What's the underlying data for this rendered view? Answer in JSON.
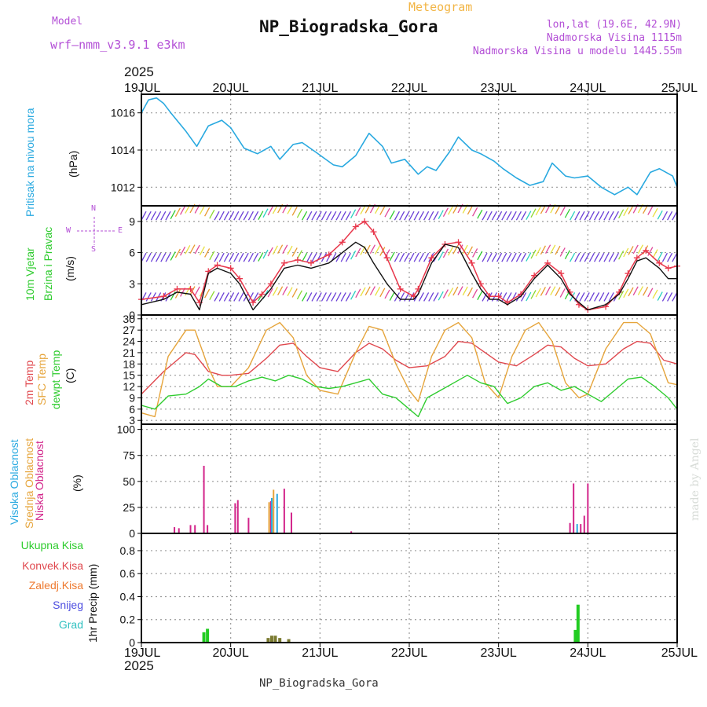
{
  "header": {
    "model_label": "Model",
    "model_name": "wrf–nmm_v3.9.1 e3km",
    "section_title": "Meteogram",
    "station": "NP_Biogradska_Gora",
    "lonlat": "lon,lat (19.6E, 42.9N)",
    "elevation": "Nadmorska Visina 1115m",
    "model_elevation": "Nadmorska Visina u modelu 1445.55m",
    "year": "2025",
    "footer_station": "NP_Biogradska_Gora",
    "watermark": "made by Angel"
  },
  "colors": {
    "pressure": "#29a9e0",
    "wind": "#111111",
    "wind_gust": "#e8384c",
    "temp2m": "#e0484e",
    "sfc": "#e6a53c",
    "dewpt": "#2fcc2f",
    "high_cloud": "#29a9e0",
    "mid_cloud": "#e6a53c",
    "low_cloud": "#d2248a",
    "precip": "#22cc22",
    "frame": "#000000",
    "grid": "#999999",
    "purple": "#b34fd6"
  },
  "chart_data": [
    {
      "type": "line",
      "panel": "pressure",
      "ylabel_main": "Pritisak na nivou mora",
      "unit": "(hPa)",
      "ylim": [
        1011,
        1017
      ],
      "yticks": [
        1012,
        1014,
        1016
      ],
      "x_days": [
        0,
        0.08,
        0.17,
        0.25,
        0.33,
        0.5,
        0.62,
        0.75,
        0.9,
        1.0,
        1.15,
        1.3,
        1.45,
        1.55,
        1.7,
        1.8,
        1.95,
        2.15,
        2.25,
        2.4,
        2.55,
        2.7,
        2.8,
        2.95,
        3.1,
        3.2,
        3.3,
        3.45,
        3.55,
        3.7,
        3.8,
        3.95,
        4.05,
        4.2,
        4.35,
        4.5,
        4.6,
        4.75,
        4.85,
        5.0,
        5.15,
        5.3,
        5.45,
        5.55,
        5.7,
        5.8,
        5.95,
        6.0
      ],
      "values": [
        1016.0,
        1016.7,
        1016.8,
        1016.5,
        1016.0,
        1015.0,
        1014.2,
        1015.3,
        1015.6,
        1015.2,
        1014.1,
        1013.8,
        1014.2,
        1013.5,
        1014.3,
        1014.4,
        1013.9,
        1013.2,
        1013.1,
        1013.7,
        1014.9,
        1014.2,
        1013.3,
        1013.5,
        1012.7,
        1013.1,
        1012.9,
        1013.9,
        1014.7,
        1014.0,
        1013.8,
        1013.4,
        1013.0,
        1012.5,
        1012.1,
        1012.3,
        1013.3,
        1012.6,
        1012.5,
        1012.6,
        1012.0,
        1011.6,
        1012.0,
        1011.6,
        1012.8,
        1013.0,
        1012.6,
        1012.0
      ]
    },
    {
      "type": "line",
      "panel": "wind",
      "ylabel_main": "10m Vjetar",
      "ylabel_sub": "Brzina i Pravac",
      "unit": "(m/s)",
      "compass": [
        "N",
        "W",
        "E",
        "S"
      ],
      "ylim": [
        0,
        10.5
      ],
      "yticks": [
        0,
        3,
        6,
        9
      ],
      "x_days": [
        0,
        0.25,
        0.4,
        0.55,
        0.65,
        0.75,
        0.85,
        1.0,
        1.1,
        1.25,
        1.35,
        1.45,
        1.6,
        1.75,
        1.9,
        2.1,
        2.25,
        2.4,
        2.5,
        2.6,
        2.75,
        2.9,
        3.05,
        3.1,
        3.25,
        3.4,
        3.55,
        3.7,
        3.8,
        3.9,
        4.0,
        4.1,
        4.25,
        4.4,
        4.55,
        4.7,
        4.8,
        4.9,
        5.0,
        5.2,
        5.35,
        5.45,
        5.55,
        5.65,
        5.8,
        5.9,
        6.0
      ],
      "values": [
        1.0,
        1.5,
        2.2,
        2.0,
        0.5,
        4.0,
        4.5,
        4.0,
        3.0,
        0.5,
        1.5,
        2.5,
        4.5,
        4.8,
        4.5,
        5.0,
        6.0,
        7.0,
        6.5,
        5.0,
        3.0,
        1.5,
        1.5,
        2.0,
        5.0,
        6.8,
        6.5,
        4.0,
        2.5,
        1.5,
        1.5,
        1.0,
        1.8,
        3.5,
        4.8,
        3.5,
        2.0,
        1.2,
        0.5,
        1.0,
        2.0,
        3.5,
        5.2,
        5.5,
        4.5,
        3.5,
        3.5
      ],
      "gust_values": [
        1.5,
        1.8,
        2.5,
        2.5,
        1.2,
        4.2,
        4.8,
        4.5,
        3.5,
        1.2,
        2.0,
        3.0,
        5.0,
        5.3,
        5.0,
        5.8,
        7.0,
        8.5,
        9.0,
        8.0,
        5.5,
        2.5,
        1.8,
        2.5,
        5.5,
        6.8,
        7.0,
        5.0,
        3.0,
        1.8,
        1.8,
        1.2,
        2.0,
        3.8,
        5.0,
        4.0,
        2.2,
        1.0,
        0.5,
        0.8,
        2.2,
        4.0,
        5.5,
        6.2,
        5.0,
        4.5,
        4.7
      ]
    },
    {
      "type": "line",
      "panel": "temperature",
      "ylabel_a": "2m Temp",
      "ylabel_b": "SFC Temp",
      "ylabel_c": "dewpt Temp",
      "unit": "(C)",
      "ylim": [
        2,
        31
      ],
      "yticks": [
        3,
        6,
        9,
        12,
        15,
        18,
        21,
        24,
        27,
        30
      ],
      "series": [
        {
          "name": "2m Temp",
          "x_days": [
            0,
            0.25,
            0.5,
            0.6,
            0.75,
            0.9,
            1.0,
            1.2,
            1.4,
            1.55,
            1.7,
            1.85,
            2.0,
            2.2,
            2.4,
            2.55,
            2.7,
            2.85,
            3.0,
            3.2,
            3.4,
            3.55,
            3.7,
            3.85,
            4.0,
            4.2,
            4.4,
            4.55,
            4.7,
            4.85,
            5.0,
            5.2,
            5.4,
            5.55,
            5.7,
            5.85,
            6.0
          ],
          "values": [
            10,
            16,
            21,
            20.5,
            16,
            15,
            15,
            15.5,
            19.5,
            23,
            23.5,
            20,
            17,
            16,
            21,
            23.5,
            22,
            19,
            17,
            17.5,
            20,
            24,
            23.5,
            21,
            18.5,
            17.5,
            20.5,
            23,
            22.5,
            19.5,
            17.5,
            18,
            22,
            24,
            23.5,
            19,
            18
          ]
        },
        {
          "name": "SFC Temp",
          "x_days": [
            0,
            0.15,
            0.3,
            0.5,
            0.6,
            0.75,
            0.85,
            1.0,
            1.2,
            1.4,
            1.55,
            1.7,
            1.85,
            2.0,
            2.2,
            2.4,
            2.55,
            2.7,
            2.85,
            3.0,
            3.1,
            3.25,
            3.4,
            3.55,
            3.7,
            3.85,
            4.0,
            4.15,
            4.3,
            4.45,
            4.6,
            4.75,
            4.9,
            5.0,
            5.2,
            5.4,
            5.55,
            5.7,
            5.9,
            6.0
          ],
          "values": [
            5,
            4,
            20,
            27,
            27,
            17,
            12,
            12,
            17,
            27,
            29,
            25,
            15,
            11,
            10,
            21,
            28,
            27,
            18,
            11,
            8,
            20,
            27,
            29,
            25,
            13,
            9,
            20,
            27,
            29,
            24,
            13,
            9,
            10,
            22,
            29,
            29,
            26,
            13,
            12.5
          ]
        },
        {
          "name": "dewpt Temp",
          "x_days": [
            0,
            0.15,
            0.3,
            0.5,
            0.65,
            0.75,
            0.9,
            1.05,
            1.2,
            1.35,
            1.5,
            1.65,
            1.8,
            1.95,
            2.1,
            2.25,
            2.4,
            2.55,
            2.7,
            2.85,
            3.0,
            3.1,
            3.2,
            3.35,
            3.5,
            3.65,
            3.8,
            3.95,
            4.1,
            4.25,
            4.4,
            4.55,
            4.7,
            4.85,
            5.0,
            5.15,
            5.3,
            5.45,
            5.6,
            5.75,
            5.9,
            6.0
          ],
          "values": [
            7,
            6,
            9.5,
            10,
            12,
            14,
            12,
            12,
            13.5,
            14.5,
            13.5,
            15,
            14,
            12,
            11.5,
            12,
            13,
            14,
            10,
            9,
            6,
            4,
            9,
            11,
            13,
            15,
            13,
            12,
            7.5,
            9,
            12,
            13,
            11,
            12,
            10,
            8,
            11,
            14,
            14.5,
            12,
            9,
            6
          ]
        }
      ]
    },
    {
      "type": "bar",
      "panel": "cloud",
      "ylabel_a": "Visoka Oblacnost",
      "ylabel_b": "Srednja Oblacnost",
      "ylabel_c": "Niska Oblacnost",
      "unit": "(%)",
      "ylim": [
        0,
        105
      ],
      "yticks": [
        0,
        25,
        50,
        75,
        100
      ],
      "series": [
        {
          "name": "Niska",
          "x_days": [
            0.37,
            0.42,
            0.55,
            0.6,
            0.7,
            0.74,
            1.05,
            1.08,
            1.2,
            1.45,
            1.6,
            1.68,
            2.35,
            4.8,
            4.84,
            4.92,
            4.96,
            5.0
          ],
          "values": [
            6,
            5,
            8,
            8,
            65,
            8,
            29,
            32,
            15,
            31,
            43,
            20,
            2,
            10,
            48,
            9,
            17,
            48
          ]
        },
        {
          "name": "Srednja",
          "x_days": [
            1.43,
            1.48
          ],
          "values": [
            30,
            42
          ]
        },
        {
          "name": "Visoka",
          "x_days": [
            1.46,
            1.52,
            4.88
          ],
          "values": [
            34,
            38,
            9
          ]
        }
      ]
    },
    {
      "type": "bar",
      "panel": "precip",
      "ylabel_a": "Ukupna Kisa",
      "ylabel_b": "Konvek.Kisa",
      "ylabel_c": "Zaledj.Kisa",
      "ylabel_d": "Snijeg",
      "ylabel_e": "Grad",
      "unit": "1hr Precip (mm)",
      "ylim": [
        0,
        0.95
      ],
      "yticks": [
        0,
        0.2,
        0.4,
        0.6,
        0.8
      ],
      "series": [
        {
          "name": "Ukupna Kisa",
          "x_days": [
            0.7,
            0.74,
            4.86,
            4.89
          ],
          "values": [
            0.09,
            0.12,
            0.11,
            0.33
          ]
        },
        {
          "name": "Konvek.Kisa",
          "x_days": [
            1.42,
            1.46,
            1.5,
            1.55,
            1.65
          ],
          "values": [
            0.04,
            0.06,
            0.06,
            0.04,
            0.03
          ]
        }
      ]
    }
  ],
  "time_axis": {
    "labels": [
      "19JUL",
      "20JUL",
      "21JUL",
      "22JUL",
      "23JUL",
      "24JUL",
      "25JUL"
    ],
    "year": "2025"
  }
}
